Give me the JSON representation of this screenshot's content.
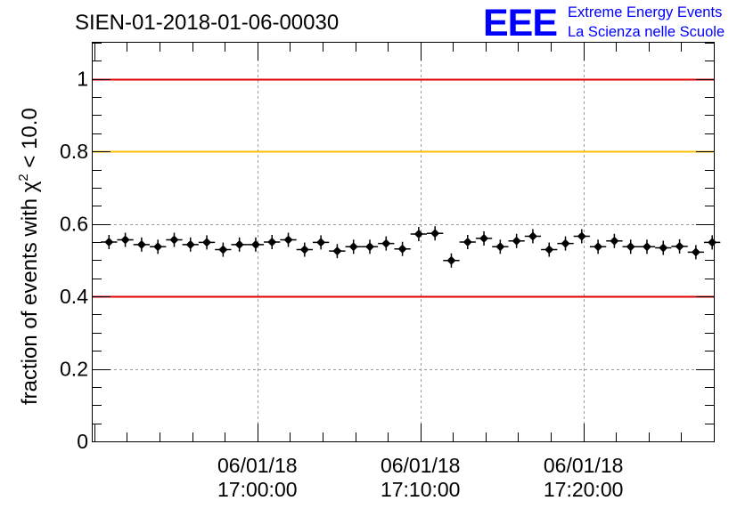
{
  "logo": {
    "mark": "EEE",
    "line1": "Extreme Energy Events",
    "line2": "La Scienza nelle Scuole",
    "color": "#0000ff"
  },
  "chart_data": {
    "type": "scatter",
    "title": "SIEN-01-2018-01-06-00030",
    "ylabel": "fraction of events with χ² < 10.0",
    "ylabel_parts": {
      "pre": "fraction of events with ",
      "sym": "χ",
      "sup": "2",
      "post": " < 10.0"
    },
    "xlabel": "",
    "ylim": [
      0,
      1.1
    ],
    "xlim_min": [
      -10.1,
      28.0
    ],
    "grid": true,
    "yticks": [
      {
        "v": 0,
        "label": "0"
      },
      {
        "v": 0.2,
        "label": "0.2"
      },
      {
        "v": 0.4,
        "label": "0.4"
      },
      {
        "v": 0.6,
        "label": "0.6"
      },
      {
        "v": 0.8,
        "label": "0.8"
      },
      {
        "v": 1,
        "label": "1"
      }
    ],
    "xticks": [
      {
        "t": 0,
        "date": "06/01/18",
        "time": "17:00:00"
      },
      {
        "t": 10,
        "date": "06/01/18",
        "time": "17:10:00"
      },
      {
        "t": 20,
        "date": "06/01/18",
        "time": "17:20:00"
      }
    ],
    "reference_lines": [
      {
        "y": 1.0,
        "color": "#e00000"
      },
      {
        "y": 0.8,
        "color": "#ffc000"
      },
      {
        "y": 0.4,
        "color": "#e00000"
      }
    ],
    "series": [
      {
        "name": "fraction",
        "x_start_min": -9.6,
        "bin_min": 1.0,
        "values": [
          0.55,
          0.556,
          0.543,
          0.537,
          0.556,
          0.543,
          0.549,
          0.529,
          0.543,
          0.543,
          0.55,
          0.556,
          0.529,
          0.549,
          0.525,
          0.537,
          0.537,
          0.546,
          0.531,
          0.572,
          0.574,
          0.499,
          0.55,
          0.56,
          0.537,
          0.553,
          0.566,
          0.529,
          0.546,
          0.566,
          0.537,
          0.553,
          0.537,
          0.537,
          0.534,
          0.538,
          0.522,
          0.549
        ],
        "color": "#000000"
      }
    ]
  }
}
